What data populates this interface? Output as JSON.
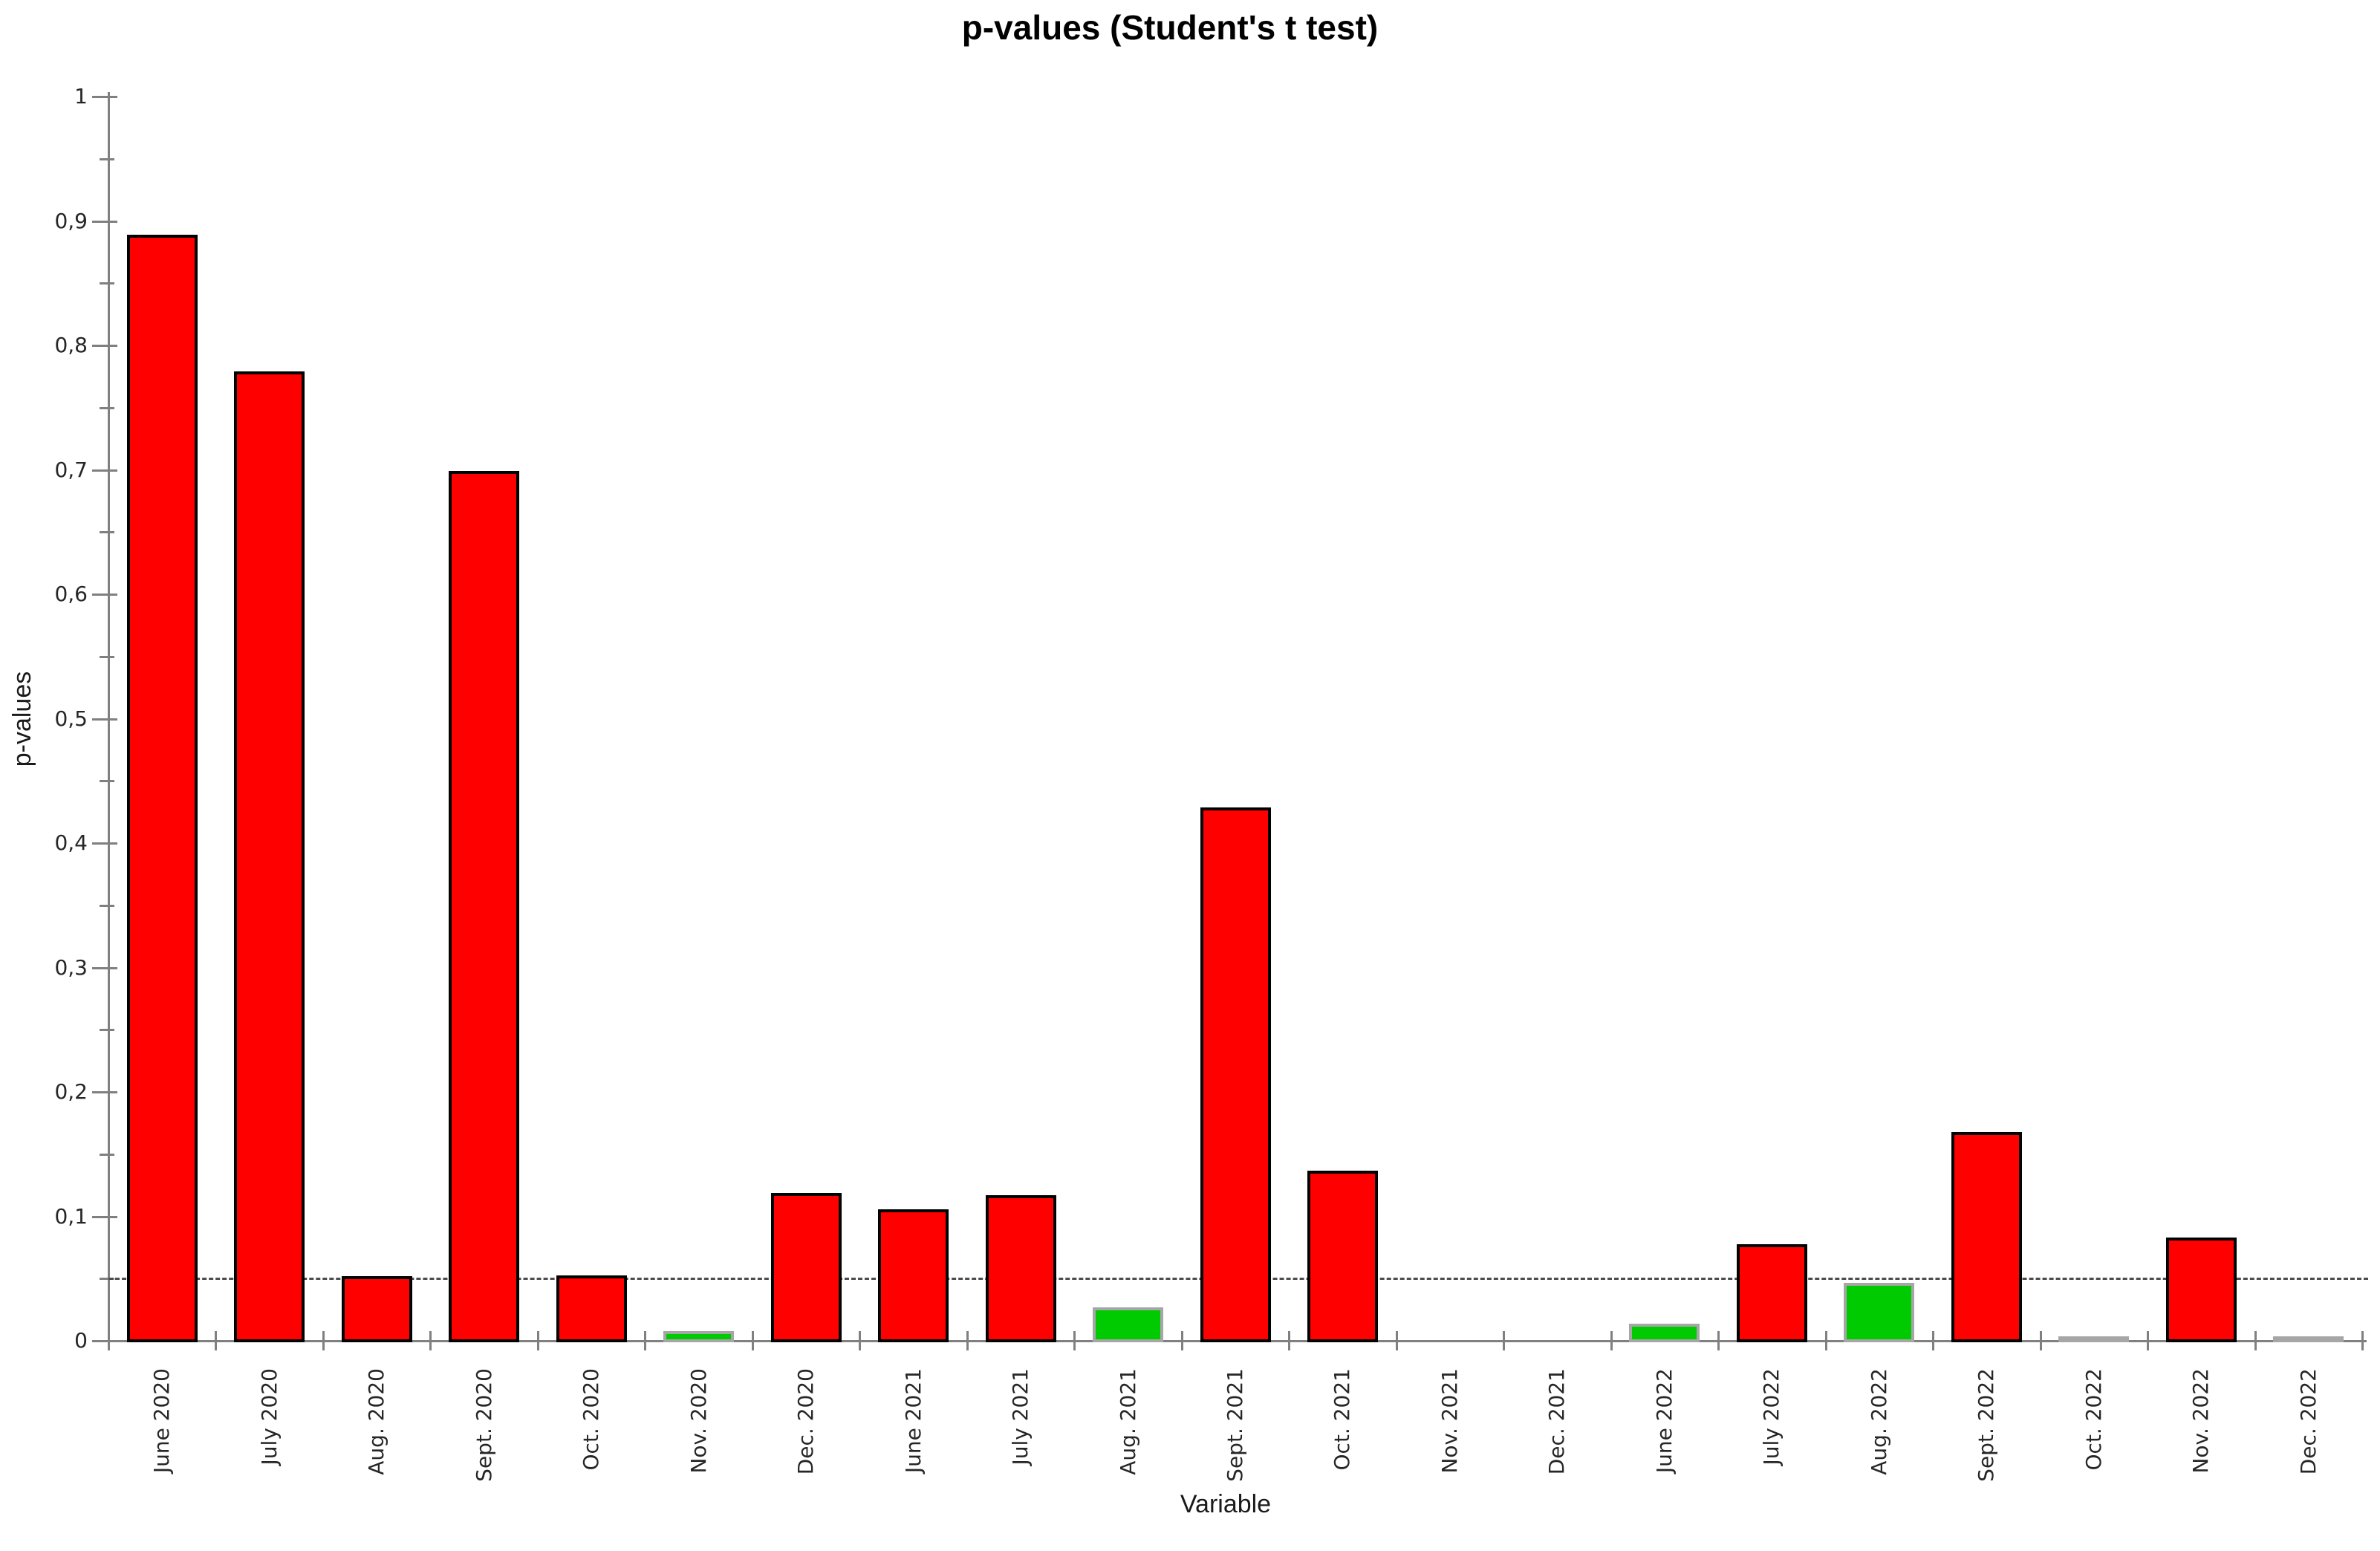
{
  "chart_data": {
    "type": "bar",
    "title": "p-values (Student's t test)",
    "xlabel": "Variable",
    "ylabel": "p-values",
    "ylim": [
      0,
      1
    ],
    "y_major_tick_step": 0.1,
    "y_minor_tick_step": 0.05,
    "y_tick_labels": [
      "0",
      "0,1",
      "0,2",
      "0,3",
      "0,4",
      "0,5",
      "0,6",
      "0,7",
      "0,8",
      "0,9",
      "1"
    ],
    "decimal_separator": ",",
    "grid": false,
    "legend": false,
    "threshold_line": {
      "value": 0.05,
      "style": "dashed",
      "meaning": "significance level 0.05"
    },
    "categories": [
      "June 2020",
      "July 2020",
      "Aug. 2020",
      "Sept. 2020",
      "Oct. 2020",
      "Nov. 2020",
      "Dec. 2020",
      "June 2021",
      "July 2021",
      "Aug. 2021",
      "Sept. 2021",
      "Oct. 2021",
      "Nov. 2021",
      "Dec. 2021",
      "June 2022",
      "July 2022",
      "Aug. 2022",
      "Sept. 2022",
      "Oct. 2022",
      "Nov. 2022",
      "Dec. 2022"
    ],
    "values": [
      0.89,
      0.78,
      0.053,
      0.7,
      0.054,
      0.009,
      0.12,
      0.107,
      0.118,
      0.028,
      0.43,
      0.138,
      0,
      0,
      0.015,
      0.079,
      0.048,
      0.169,
      0.002,
      0.084,
      0.002
    ],
    "bar_styles": [
      "red",
      "red",
      "red",
      "red",
      "red",
      "green",
      "red",
      "red",
      "red",
      "green",
      "red",
      "red",
      "none",
      "none",
      "green",
      "red",
      "green",
      "red",
      "green",
      "red",
      "green"
    ],
    "colors": {
      "red_fill": "#ff0000",
      "red_border": "#000000",
      "green_fill": "#00cb00",
      "green_border": "#a6a6a6",
      "axis": "#808080",
      "threshold": "#4d4d4d",
      "text": "#262626"
    }
  }
}
